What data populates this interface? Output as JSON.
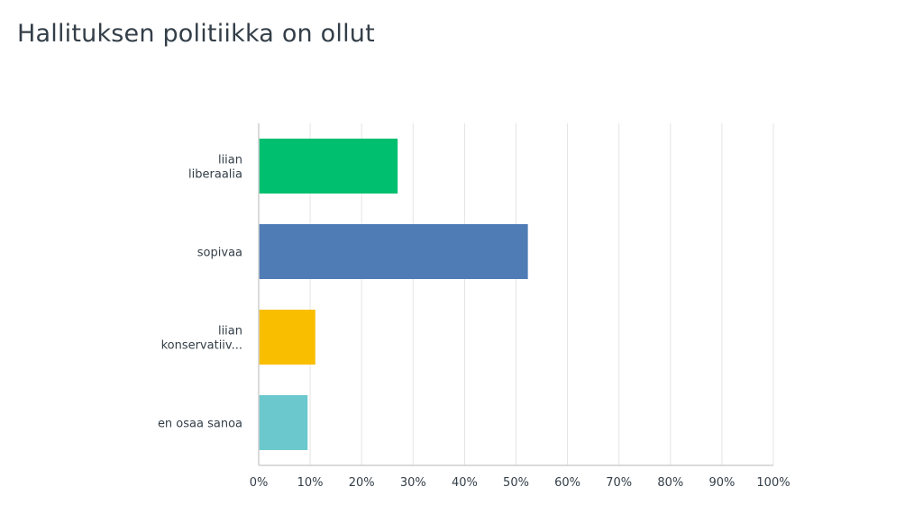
{
  "page": {
    "title": "Hallituksen politiikka on ollut"
  },
  "chart_data": {
    "type": "bar",
    "orientation": "horizontal",
    "title": "Hallituksen politiikka on ollut",
    "xlabel": "",
    "ylabel": "",
    "xlim": [
      0,
      100
    ],
    "grid": true,
    "categories": [
      {
        "lines": [
          "liian",
          "liberaalia"
        ],
        "value": 27,
        "color": "#00bf6f"
      },
      {
        "lines": [
          "sopivaa"
        ],
        "value": 52.3,
        "color": "#507cb6"
      },
      {
        "lines": [
          "liian",
          "konservatiiv..."
        ],
        "value": 11,
        "color": "#f9be00"
      },
      {
        "lines": [
          "en osaa sanoa"
        ],
        "value": 9.5,
        "color": "#6bc8cd"
      }
    ],
    "ticks": [
      "0%",
      "10%",
      "20%",
      "30%",
      "40%",
      "50%",
      "60%",
      "70%",
      "80%",
      "90%",
      "100%"
    ]
  }
}
